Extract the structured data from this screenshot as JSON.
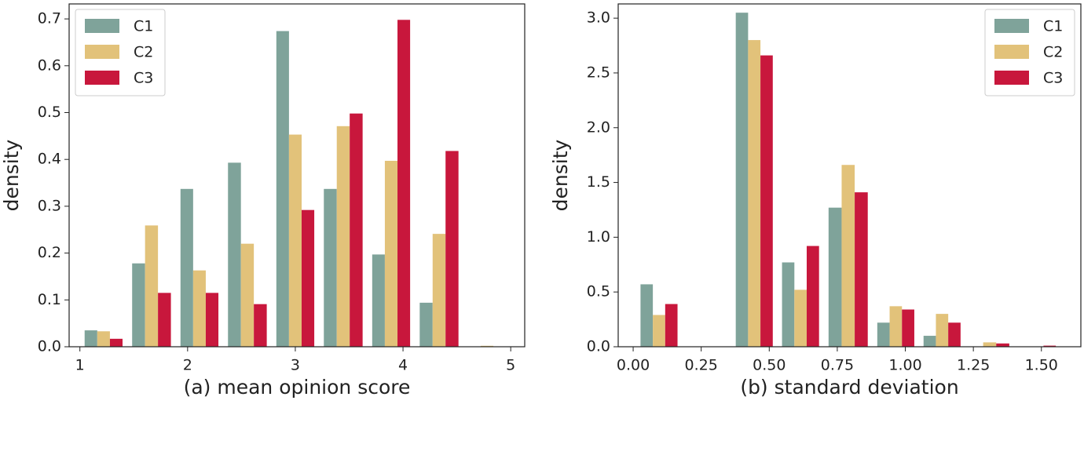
{
  "chart_data": [
    {
      "type": "histogram",
      "xlabel": "(a) mean opinion score",
      "ylabel": "density",
      "bins": [
        1,
        1.44,
        1.89,
        2.33,
        2.78,
        3.22,
        3.67,
        4.11,
        4.56,
        5
      ],
      "series": [
        {
          "name": "C1",
          "color": "#7fa39a",
          "values": [
            0.035,
            0.178,
            0.337,
            0.393,
            0.674,
            0.337,
            0.197,
            0.094,
            0
          ]
        },
        {
          "name": "C2",
          "color": "#e2c27a",
          "values": [
            0.033,
            0.259,
            0.163,
            0.22,
            0.453,
            0.471,
            0.397,
            0.241,
            0.002
          ]
        },
        {
          "name": "C3",
          "color": "#c8173c",
          "values": [
            0.017,
            0.115,
            0.115,
            0.091,
            0.292,
            0.498,
            0.698,
            0.418,
            0
          ]
        }
      ],
      "xlim": [
        0.9,
        5.13
      ],
      "xticks": [
        1,
        2,
        3,
        4,
        5
      ],
      "ylim": [
        0,
        0.732
      ],
      "yticks": [
        {
          "value": 0,
          "label": "0.0"
        },
        0.1,
        0.2,
        0.3,
        0.4,
        0.5,
        0.6,
        0.7
      ],
      "legend": "upper left"
    },
    {
      "type": "histogram",
      "xlabel": "(b) standard deviation",
      "ylabel": "density",
      "bins": [
        0.01,
        0.18,
        0.36,
        0.53,
        0.7,
        0.88,
        1.05,
        1.22,
        1.4,
        1.57
      ],
      "series": [
        {
          "name": "C1",
          "color": "#7fa39a",
          "values": [
            0.57,
            0,
            3.05,
            0.77,
            1.27,
            0.22,
            0.1,
            0,
            0
          ]
        },
        {
          "name": "C2",
          "color": "#e2c27a",
          "values": [
            0.29,
            0,
            2.8,
            0.52,
            1.66,
            0.37,
            0.3,
            0.04,
            0
          ]
        },
        {
          "name": "C3",
          "color": "#c8173c",
          "values": [
            0.39,
            0,
            2.66,
            0.92,
            1.41,
            0.34,
            0.22,
            0.03,
            0.01
          ]
        }
      ],
      "xlim": [
        -0.055,
        1.645
      ],
      "xticks": [
        {
          "value": 0,
          "label": "0.00"
        },
        {
          "value": 0.25,
          "label": "0.25"
        },
        {
          "value": 0.5,
          "label": "0.50"
        },
        {
          "value": 0.75,
          "label": "0.75"
        },
        {
          "value": 1,
          "label": "1.00"
        },
        {
          "value": 1.25,
          "label": "1.25"
        },
        {
          "value": 1.5,
          "label": "1.50"
        }
      ],
      "ylim": [
        0,
        3.13
      ],
      "yticks": [
        {
          "value": 0,
          "label": "0.0"
        },
        0.5,
        {
          "value": 1,
          "label": "1.0"
        },
        1.5,
        {
          "value": 2,
          "label": "2.0"
        },
        2.5,
        {
          "value": 3,
          "label": "3.0"
        }
      ],
      "legend": "upper right"
    }
  ]
}
